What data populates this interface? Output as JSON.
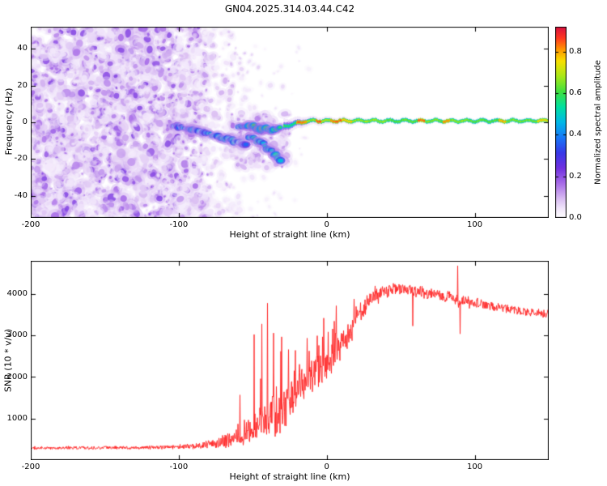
{
  "title": "GN04.2025.314.03.44.C42",
  "background": "#ffffff",
  "colormap_stops": [
    [
      0.0,
      "#ffffff"
    ],
    [
      0.05,
      "#f0e4fa"
    ],
    [
      0.1,
      "#d9bcf2"
    ],
    [
      0.18,
      "#a86ce8"
    ],
    [
      0.26,
      "#7030e0"
    ],
    [
      0.34,
      "#3838e8"
    ],
    [
      0.42,
      "#1878f8"
    ],
    [
      0.5,
      "#00b8e8"
    ],
    [
      0.58,
      "#00e0a0"
    ],
    [
      0.66,
      "#40e040"
    ],
    [
      0.74,
      "#a8e818"
    ],
    [
      0.82,
      "#f8e000"
    ],
    [
      0.88,
      "#ff9800"
    ],
    [
      0.94,
      "#ff3820"
    ],
    [
      1.0,
      "#d81040"
    ]
  ],
  "chart_data": [
    {
      "type": "heatmap",
      "name": "spectrogram",
      "xlabel": "Height of straight line (km)",
      "ylabel": "Frequency (Hz)",
      "xlim": [
        -200,
        150
      ],
      "ylim": [
        -52,
        52
      ],
      "xticks": [
        -200,
        -100,
        0,
        100
      ],
      "yticks": [
        -40,
        -20,
        0,
        20,
        40
      ],
      "colorbar": {
        "label": "Normalized spectral amplitude",
        "range": [
          0,
          0.92
        ],
        "tick_values": [
          0,
          0.2,
          0.4,
          0.6,
          0.8
        ],
        "tick_labels": [
          "0.0",
          "0.2",
          "0.4",
          "0.6",
          "0.8"
        ]
      },
      "noise_regions": [
        {
          "x0": -200,
          "x1": -100,
          "count": 1800,
          "amp": [
            0.04,
            0.24
          ],
          "radius": [
            1.2,
            4.6
          ]
        },
        {
          "x0": -100,
          "x1": -80,
          "count": 330,
          "amp": [
            0.03,
            0.2
          ],
          "radius": [
            1.2,
            4.2
          ]
        },
        {
          "x0": -80,
          "x1": -62,
          "count": 140,
          "amp": [
            0.03,
            0.13
          ],
          "radius": [
            1.0,
            3.6
          ]
        },
        {
          "x0": -62,
          "x1": -42,
          "count": 70,
          "amp": [
            0.02,
            0.09
          ],
          "radius": [
            1.0,
            3.0
          ]
        },
        {
          "x0": -42,
          "x1": -12,
          "count": 28,
          "amp": [
            0.02,
            0.07
          ],
          "radius": [
            0.8,
            2.4
          ]
        },
        {
          "x0": -65,
          "x1": -25,
          "count": 160,
          "amp": [
            0.05,
            0.2
          ],
          "radius": [
            1.5,
            4.5
          ],
          "f_range": [
            -25,
            5
          ]
        }
      ],
      "signal_tracks": [
        {
          "points": [
            [
              -104,
              -2,
              0.42
            ],
            [
              -97,
              -3,
              0.46
            ],
            [
              -90,
              -4,
              0.5
            ],
            [
              -83,
              -6,
              0.46
            ],
            [
              -76,
              -7,
              0.52
            ],
            [
              -70,
              -9,
              0.55
            ],
            [
              -64,
              -10,
              0.5
            ],
            [
              -58,
              -11,
              0.46
            ],
            [
              -53,
              -12,
              0.42
            ]
          ]
        },
        {
          "points": [
            [
              -52,
              -8,
              0.5
            ],
            [
              -47,
              -10,
              0.56
            ],
            [
              -43,
              -12,
              0.55
            ],
            [
              -39,
              -15,
              0.52
            ],
            [
              -36,
              -17,
              0.55
            ],
            [
              -33,
              -19,
              0.5
            ],
            [
              -30,
              -22,
              0.44
            ]
          ]
        },
        {
          "points": [
            [
              -60,
              -2,
              0.5
            ],
            [
              -54,
              -3,
              0.56
            ],
            [
              -49,
              -2,
              0.6
            ],
            [
              -45,
              -4,
              0.6
            ],
            [
              -41,
              -3,
              0.64
            ],
            [
              -37,
              -5,
              0.6
            ],
            [
              -33,
              -3,
              0.64
            ],
            [
              -30,
              -2,
              0.66
            ]
          ]
        }
      ],
      "main_line": {
        "x_start": -29,
        "freq": 0.8,
        "freq_start": -2.2,
        "freq_settle_x": -14,
        "amp_segments": [
          [
            -29,
            -21,
            0.62
          ],
          [
            -21,
            -14,
            0.9
          ],
          [
            -14,
            -8,
            0.72
          ],
          [
            -8,
            -4,
            0.92
          ],
          [
            -4,
            2,
            0.75
          ],
          [
            2,
            10,
            0.9
          ],
          [
            10,
            17,
            0.84
          ],
          [
            17,
            40,
            0.72
          ],
          [
            40,
            61,
            0.68
          ],
          [
            61,
            66,
            0.9
          ],
          [
            66,
            78,
            0.7
          ],
          [
            78,
            83,
            0.88
          ],
          [
            83,
            96,
            0.72
          ],
          [
            96,
            116,
            0.68
          ],
          [
            116,
            121,
            0.86
          ],
          [
            121,
            142,
            0.7
          ],
          [
            142,
            150,
            0.82
          ]
        ]
      },
      "seed": 1337
    },
    {
      "type": "line",
      "name": "snr",
      "xlabel": "Height of straight line (km)",
      "ylabel": "SNR (10 * v/v)",
      "xlim": [
        -200,
        150
      ],
      "ylim": [
        0,
        4800
      ],
      "xticks": [
        -200,
        -100,
        0,
        100
      ],
      "yticks": [
        1000,
        2000,
        3000,
        4000
      ],
      "line_color": "#ff2222",
      "envelope": [
        [
          -200,
          290,
          45,
          0
        ],
        [
          -160,
          295,
          45,
          0
        ],
        [
          -130,
          300,
          50,
          0
        ],
        [
          -110,
          305,
          55,
          0
        ],
        [
          -100,
          315,
          60,
          30
        ],
        [
          -92,
          330,
          75,
          60
        ],
        [
          -85,
          345,
          90,
          150
        ],
        [
          -78,
          380,
          120,
          350
        ],
        [
          -72,
          420,
          160,
          650
        ],
        [
          -66,
          480,
          220,
          950
        ],
        [
          -60,
          560,
          280,
          1450
        ],
        [
          -54,
          680,
          350,
          2050
        ],
        [
          -48,
          820,
          420,
          2600
        ],
        [
          -43,
          950,
          500,
          2900
        ],
        [
          -40,
          1020,
          540,
          2800
        ],
        [
          -37,
          1120,
          580,
          2400
        ],
        [
          -34,
          980,
          500,
          2000
        ],
        [
          -31,
          1080,
          540,
          1800
        ],
        [
          -28,
          1330,
          590,
          1500
        ],
        [
          -24,
          1540,
          600,
          1250
        ],
        [
          -20,
          1740,
          600,
          1050
        ],
        [
          -16,
          1890,
          590,
          950
        ],
        [
          -12,
          2040,
          560,
          850
        ],
        [
          -8,
          2140,
          550,
          820
        ],
        [
          -4,
          2240,
          550,
          900
        ],
        [
          0,
          2350,
          550,
          900
        ],
        [
          5,
          2550,
          500,
          750
        ],
        [
          10,
          2800,
          460,
          620
        ],
        [
          16,
          3150,
          400,
          420
        ],
        [
          22,
          3500,
          330,
          300
        ],
        [
          28,
          3790,
          280,
          200
        ],
        [
          34,
          3970,
          230,
          150
        ],
        [
          40,
          4070,
          200,
          120
        ],
        [
          48,
          4120,
          185,
          100
        ],
        [
          56,
          4110,
          180,
          100
        ],
        [
          64,
          4040,
          170,
          90
        ],
        [
          72,
          3980,
          160,
          80
        ],
        [
          80,
          3930,
          170,
          120
        ],
        [
          88,
          3880,
          200,
          280
        ],
        [
          96,
          3800,
          160,
          80
        ],
        [
          106,
          3740,
          140,
          60
        ],
        [
          116,
          3680,
          130,
          50
        ],
        [
          126,
          3620,
          120,
          50
        ],
        [
          136,
          3570,
          115,
          40
        ],
        [
          148,
          3520,
          110,
          40
        ]
      ],
      "spike_probability": 0.1,
      "spikes_up": [
        [
          -40,
          3780
        ],
        [
          -44,
          3280
        ],
        [
          -36,
          3060
        ],
        [
          -31,
          2620
        ],
        [
          -2,
          3420
        ],
        [
          4,
          3160
        ],
        [
          88.5,
          4680
        ]
      ],
      "spikes_down": [
        [
          58,
          3230
        ],
        [
          90,
          3040
        ]
      ],
      "seed": 2024
    }
  ]
}
